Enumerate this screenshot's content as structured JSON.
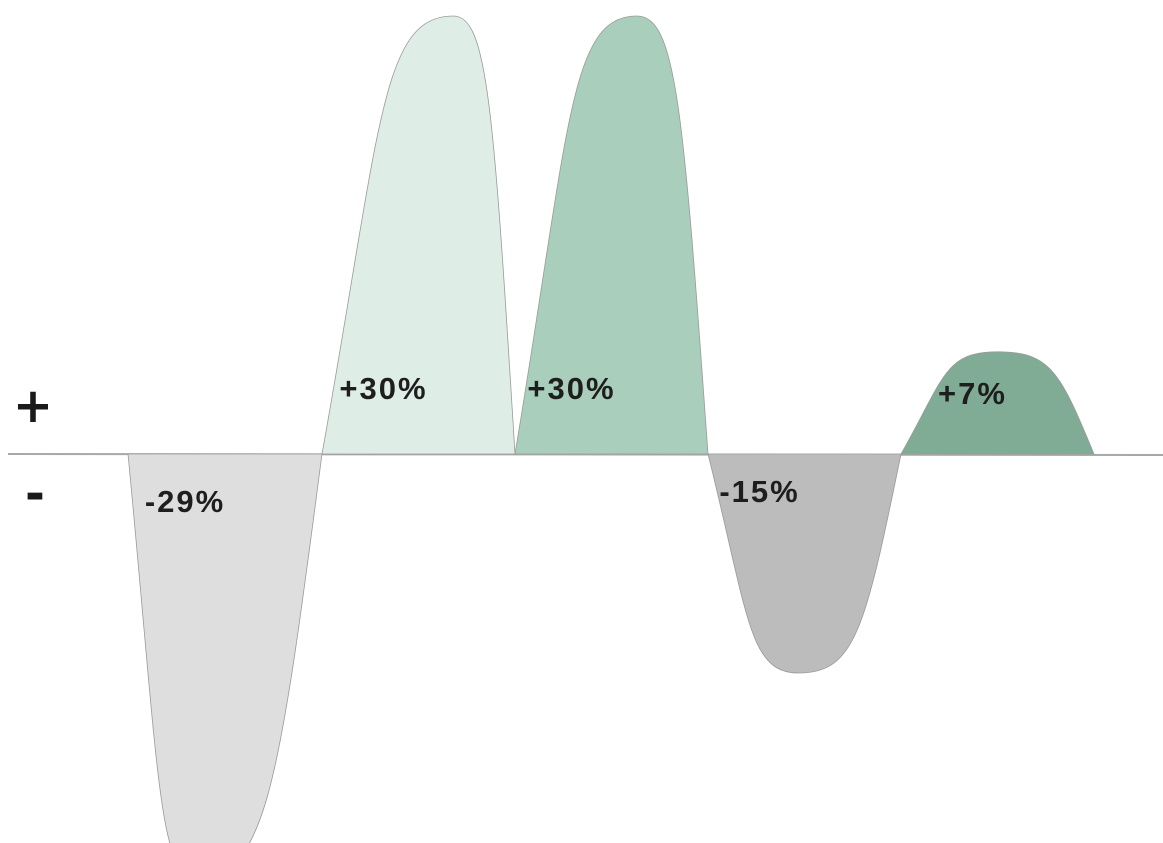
{
  "chart_data": {
    "type": "area",
    "title": "",
    "xlabel": "",
    "ylabel": "",
    "axis_labels": {
      "positive": "+",
      "negative": "-"
    },
    "ylim": [
      -40,
      40
    ],
    "grid": false,
    "series": [
      {
        "label": "-29%",
        "value": -29,
        "color": "#dedede"
      },
      {
        "label": "+30%",
        "value": 30,
        "color": "#deede6"
      },
      {
        "label": "+30%",
        "value": 30,
        "color": "#a9cebb"
      },
      {
        "label": "-15%",
        "value": -15,
        "color": "#bcbcbc"
      },
      {
        "label": "+7%",
        "value": 7,
        "color": "#80ac95"
      }
    ],
    "baseline_color": "#a8a8a8"
  }
}
